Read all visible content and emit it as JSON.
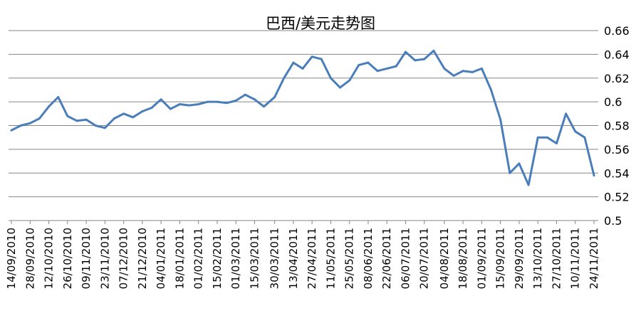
{
  "chart_data": {
    "type": "line",
    "title": "巴西/美元走势图",
    "xlabel": "",
    "ylabel": "",
    "ylim": [
      0.5,
      0.66
    ],
    "yticks": [
      "0.5",
      "0.52",
      "0.54",
      "0.56",
      "0.58",
      "0.6",
      "0.62",
      "0.64",
      "0.66"
    ],
    "grid": true,
    "legend": "none",
    "xticks": [
      "14/09/2010",
      "28/09/2010",
      "12/10/2010",
      "26/10/2010",
      "09/11/2010",
      "23/11/2010",
      "07/12/2010",
      "21/12/2010",
      "04/01/2011",
      "18/01/2011",
      "01/02/2011",
      "15/02/2011",
      "01/03/2011",
      "15/03/2011",
      "30/03/2011",
      "13/04/2011",
      "27/04/2011",
      "11/05/2011",
      "25/05/2011",
      "08/06/2011",
      "22/06/2011",
      "06/07/2011",
      "20/07/2011",
      "04/08/2011",
      "18/08/2011",
      "01/09/2011",
      "15/09/2011",
      "29/09/2011",
      "13/10/2011",
      "27/10/2011",
      "10/11/2011",
      "24/11/2011"
    ],
    "colors": {
      "line": "#4a7ebb",
      "grid": "#868686",
      "axis": "#868686"
    },
    "series": [
      {
        "x": [
          "14/09/2010",
          "21/09/2010",
          "28/09/2010",
          "05/10/2010",
          "12/10/2010",
          "19/10/2010",
          "26/10/2010",
          "02/11/2010",
          "09/11/2010",
          "16/11/2010",
          "23/11/2010",
          "30/11/2010",
          "07/12/2010",
          "14/12/2010",
          "21/12/2010",
          "28/12/2010",
          "04/01/2011",
          "11/01/2011",
          "18/01/2011",
          "25/01/2011",
          "01/02/2011",
          "08/02/2011",
          "15/02/2011",
          "22/02/2011",
          "01/03/2011",
          "08/03/2011",
          "15/03/2011",
          "22/03/2011",
          "30/03/2011",
          "06/04/2011",
          "13/04/2011",
          "20/04/2011",
          "27/04/2011",
          "04/05/2011",
          "11/05/2011",
          "18/05/2011",
          "25/05/2011",
          "01/06/2011",
          "08/06/2011",
          "15/06/2011",
          "22/06/2011",
          "29/06/2011",
          "06/07/2011",
          "13/07/2011",
          "20/07/2011",
          "27/07/2011",
          "04/08/2011",
          "11/08/2011",
          "18/08/2011",
          "25/08/2011",
          "01/09/2011",
          "08/09/2011",
          "15/09/2011",
          "22/09/2011",
          "29/09/2011",
          "06/10/2011",
          "13/10/2011",
          "20/10/2011",
          "27/10/2011",
          "03/11/2011",
          "10/11/2011",
          "17/11/2011",
          "24/11/2011"
        ],
        "values": [
          0.576,
          0.58,
          0.582,
          0.586,
          0.596,
          0.604,
          0.588,
          0.584,
          0.585,
          0.58,
          0.578,
          0.586,
          0.59,
          0.587,
          0.592,
          0.595,
          0.602,
          0.594,
          0.598,
          0.597,
          0.598,
          0.6,
          0.6,
          0.599,
          0.601,
          0.606,
          0.602,
          0.596,
          0.604,
          0.62,
          0.633,
          0.628,
          0.638,
          0.636,
          0.62,
          0.612,
          0.618,
          0.631,
          0.633,
          0.626,
          0.628,
          0.63,
          0.642,
          0.635,
          0.636,
          0.643,
          0.628,
          0.622,
          0.626,
          0.625,
          0.628,
          0.61,
          0.585,
          0.54,
          0.548,
          0.53,
          0.57,
          0.57,
          0.565,
          0.59,
          0.575,
          0.57,
          0.538
        ]
      }
    ]
  }
}
